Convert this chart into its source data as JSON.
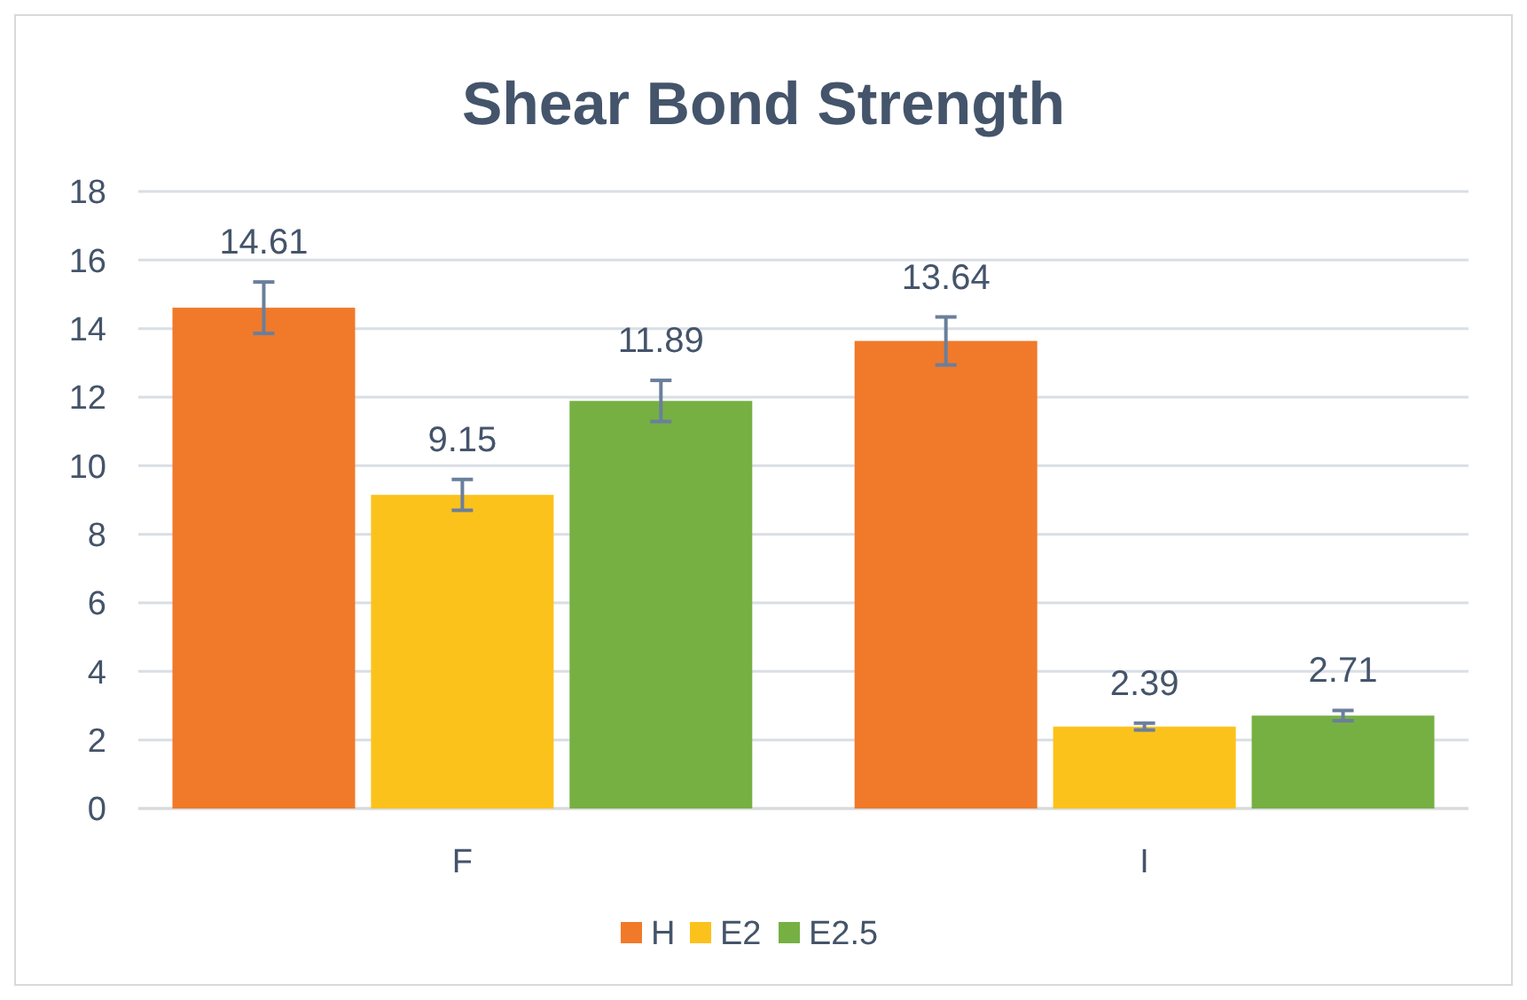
{
  "chart_data": {
    "type": "bar",
    "title": "Shear Bond Strength",
    "categories": [
      "F",
      "I"
    ],
    "series": [
      {
        "name": "H",
        "color": "#f07a2a",
        "values": [
          14.61,
          13.64
        ],
        "errors": [
          0.75,
          0.7
        ]
      },
      {
        "name": "E2",
        "color": "#fcc21c",
        "values": [
          9.15,
          2.39
        ],
        "errors": [
          0.45,
          0.1
        ]
      },
      {
        "name": "E2.5",
        "color": "#76b043",
        "values": [
          11.89,
          2.71
        ],
        "errors": [
          0.6,
          0.15
        ]
      }
    ],
    "ylim": [
      0,
      18
    ],
    "yticks": [
      0,
      2,
      4,
      6,
      8,
      10,
      12,
      14,
      16,
      18
    ],
    "grid": true,
    "legend": "bottom",
    "data_labels": true
  }
}
